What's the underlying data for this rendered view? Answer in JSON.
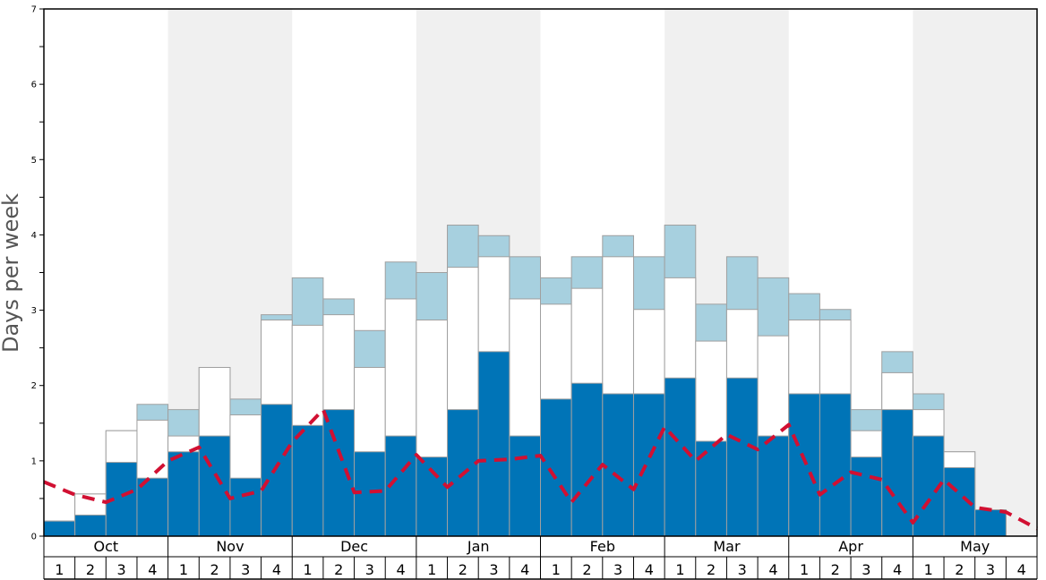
{
  "chart_data": {
    "type": "bar",
    "ylabel": "Days per week",
    "ylim": [
      0,
      7
    ],
    "y_ticks": [
      "0",
      "1",
      "2",
      "3",
      "4",
      "5",
      "6",
      "7"
    ],
    "months": [
      "Oct",
      "Nov",
      "Dec",
      "Jan",
      "Feb",
      "Mar",
      "Apr",
      "May"
    ],
    "week_labels": [
      "1",
      "2",
      "3",
      "4"
    ],
    "shaded_months": [
      "Nov",
      "Jan",
      "Mar",
      "May"
    ],
    "colors": {
      "dark": "#0074b7",
      "light": "#ffffff",
      "pale": "#a7d0df",
      "line": "#d11032",
      "shade": "#f0f0f0"
    },
    "series": [
      {
        "values": [
          0.2,
          0.28,
          0.98,
          0.77,
          1.12,
          1.33,
          0.77,
          1.75,
          1.47,
          1.68,
          1.12,
          1.33,
          1.05,
          1.68,
          2.45,
          1.33,
          1.82,
          2.03,
          1.89,
          1.89,
          2.1,
          1.26,
          2.1,
          1.33,
          1.89,
          1.89,
          1.05,
          1.68,
          1.33,
          0.91,
          0.35,
          0
        ]
      },
      {
        "values": [
          0.2,
          0.56,
          1.4,
          1.54,
          1.33,
          2.24,
          1.61,
          2.87,
          2.8,
          2.94,
          2.24,
          3.15,
          2.87,
          3.57,
          3.71,
          3.15,
          3.08,
          3.29,
          3.71,
          3.01,
          3.43,
          2.59,
          3.01,
          2.66,
          2.87,
          2.87,
          1.4,
          2.17,
          1.68,
          1.12,
          0.35,
          0
        ]
      },
      {
        "values": [
          0.2,
          0.56,
          1.4,
          1.75,
          1.68,
          2.24,
          1.82,
          2.94,
          3.43,
          3.15,
          2.73,
          3.64,
          3.5,
          4.13,
          3.99,
          3.71,
          3.43,
          3.71,
          3.99,
          3.71,
          4.13,
          3.08,
          3.71,
          3.43,
          3.22,
          3.01,
          1.68,
          2.45,
          1.89,
          1.12,
          0.35,
          0
        ]
      },
      {
        "type": "line",
        "style": "dashed",
        "values": [
          0.72,
          0.55,
          0.45,
          0.62,
          1.0,
          1.18,
          0.5,
          0.6,
          1.25,
          1.68,
          0.58,
          0.6,
          1.08,
          0.65,
          1.0,
          1.02,
          1.07,
          0.45,
          0.95,
          0.62,
          1.45,
          1.0,
          1.35,
          1.15,
          1.48,
          0.55,
          0.85,
          0.75,
          0.18,
          0.75,
          0.38,
          0.32,
          0.1
        ]
      }
    ]
  }
}
